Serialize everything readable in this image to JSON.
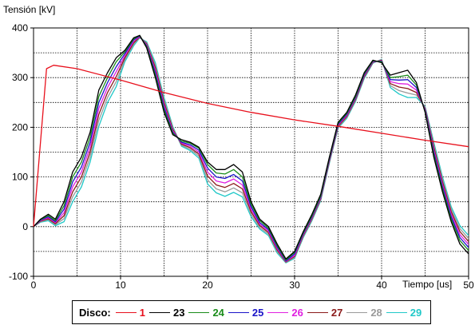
{
  "chart_data": {
    "type": "line",
    "ylabel": "Tensión [kV]",
    "xlabel": "Tiempo  [us]",
    "xlim": [
      0,
      50
    ],
    "ylim": [
      -100,
      400
    ],
    "xticks": [
      0,
      10,
      20,
      30,
      40,
      50
    ],
    "yticks": [
      -100,
      0,
      100,
      200,
      300,
      400
    ],
    "grid": true,
    "legend_title": "Disco:",
    "legend_position": "bottom",
    "series": [
      {
        "name": "1",
        "color": "#e8101c",
        "x": [
          0,
          1.5,
          2.3,
          5,
          10,
          15,
          20,
          25,
          30,
          35,
          40,
          45,
          50
        ],
        "y": [
          0,
          318,
          325,
          318,
          295,
          270,
          248,
          230,
          215,
          202,
          188,
          174,
          161
        ]
      },
      {
        "name": "23",
        "color": "#000000",
        "x": [
          0,
          0.8,
          1.7,
          2.5,
          3.5,
          4.5,
          5.5,
          6.5,
          7.5,
          8.5,
          9.5,
          10.5,
          11.5,
          12.2,
          13,
          14,
          15,
          16,
          17,
          18,
          19,
          20,
          21,
          22,
          23,
          24,
          25,
          26,
          27,
          28,
          29,
          30,
          31,
          32,
          33,
          34,
          35,
          36,
          37,
          38,
          39,
          40,
          41,
          42,
          43,
          44,
          45,
          46,
          47,
          48,
          49,
          50
        ],
        "y": [
          0,
          15,
          25,
          15,
          50,
          110,
          140,
          190,
          275,
          310,
          340,
          355,
          380,
          385,
          360,
          300,
          230,
          185,
          175,
          170,
          160,
          130,
          115,
          115,
          125,
          110,
          50,
          15,
          0,
          -35,
          -65,
          -50,
          -10,
          25,
          65,
          140,
          210,
          230,
          265,
          310,
          335,
          330,
          305,
          310,
          315,
          290,
          230,
          140,
          70,
          10,
          -35,
          -55
        ]
      },
      {
        "name": "24",
        "color": "#1a8c1a",
        "x": [
          0,
          0.8,
          1.7,
          2.5,
          3.5,
          4.5,
          5.5,
          6.5,
          7.5,
          8.5,
          9.5,
          10.5,
          11.5,
          12.2,
          13,
          14,
          15,
          16,
          17,
          18,
          19,
          20,
          21,
          22,
          23,
          24,
          25,
          26,
          27,
          28,
          29,
          30,
          31,
          32,
          33,
          34,
          35,
          36,
          37,
          38,
          39,
          40,
          41,
          42,
          43,
          44,
          45,
          46,
          47,
          48,
          49,
          50
        ],
        "y": [
          0,
          14,
          22,
          12,
          42,
          100,
          130,
          180,
          262,
          300,
          332,
          352,
          378,
          385,
          362,
          305,
          235,
          188,
          172,
          168,
          158,
          125,
          108,
          106,
          115,
          100,
          45,
          12,
          -3,
          -38,
          -67,
          -52,
          -12,
          22,
          62,
          138,
          208,
          228,
          262,
          308,
          334,
          332,
          300,
          302,
          305,
          285,
          232,
          145,
          75,
          15,
          -28,
          -48
        ]
      },
      {
        "name": "25",
        "color": "#1a14c8",
        "x": [
          0,
          0.8,
          1.7,
          2.5,
          3.5,
          4.5,
          5.5,
          6.5,
          7.5,
          8.5,
          9.5,
          10.5,
          11.5,
          12.2,
          13,
          14,
          15,
          16,
          17,
          18,
          19,
          20,
          21,
          22,
          23,
          24,
          25,
          26,
          27,
          28,
          29,
          30,
          31,
          32,
          33,
          34,
          35,
          36,
          37,
          38,
          39,
          40,
          41,
          42,
          43,
          44,
          45,
          46,
          47,
          48,
          49,
          50
        ],
        "y": [
          0,
          13,
          20,
          10,
          35,
          90,
          120,
          170,
          250,
          290,
          322,
          348,
          376,
          384,
          364,
          310,
          240,
          190,
          170,
          165,
          154,
          118,
          100,
          97,
          105,
          92,
          40,
          8,
          -6,
          -41,
          -69,
          -55,
          -14,
          20,
          60,
          136,
          206,
          226,
          260,
          306,
          333,
          333,
          296,
          295,
          296,
          280,
          234,
          150,
          80,
          20,
          -22,
          -42
        ]
      },
      {
        "name": "26",
        "color": "#e020e0",
        "x": [
          0,
          0.8,
          1.7,
          2.5,
          3.5,
          4.5,
          5.5,
          6.5,
          7.5,
          8.5,
          9.5,
          10.5,
          11.5,
          12.2,
          13,
          14,
          15,
          16,
          17,
          18,
          19,
          20,
          21,
          22,
          23,
          24,
          25,
          26,
          27,
          28,
          29,
          30,
          31,
          32,
          33,
          34,
          35,
          36,
          37,
          38,
          39,
          40,
          41,
          42,
          43,
          44,
          45,
          46,
          47,
          48,
          49,
          50
        ],
        "y": [
          0,
          12,
          18,
          8,
          28,
          80,
          110,
          160,
          238,
          280,
          312,
          344,
          373,
          383,
          366,
          315,
          245,
          193,
          168,
          162,
          150,
          110,
          92,
          88,
          96,
          84,
          35,
          5,
          -9,
          -44,
          -70,
          -58,
          -16,
          18,
          58,
          134,
          204,
          224,
          258,
          304,
          332,
          334,
          292,
          288,
          287,
          275,
          236,
          155,
          85,
          25,
          -16,
          -36
        ]
      },
      {
        "name": "27",
        "color": "#8b1a1a",
        "x": [
          0,
          0.8,
          1.7,
          2.5,
          3.5,
          4.5,
          5.5,
          6.5,
          7.5,
          8.5,
          9.5,
          10.5,
          11.5,
          12.2,
          13,
          14,
          15,
          16,
          17,
          18,
          19,
          20,
          21,
          22,
          23,
          24,
          25,
          26,
          27,
          28,
          29,
          30,
          31,
          32,
          33,
          34,
          35,
          36,
          37,
          38,
          39,
          40,
          41,
          42,
          43,
          44,
          45,
          46,
          47,
          48,
          49,
          50
        ],
        "y": [
          0,
          11,
          16,
          6,
          22,
          70,
          100,
          150,
          226,
          270,
          302,
          340,
          370,
          382,
          368,
          320,
          250,
          196,
          166,
          159,
          146,
          102,
          84,
          79,
          87,
          76,
          30,
          2,
          -12,
          -47,
          -71,
          -60,
          -18,
          16,
          56,
          132,
          202,
          222,
          256,
          302,
          331,
          335,
          288,
          281,
          278,
          270,
          238,
          160,
          90,
          30,
          -10,
          -30
        ]
      },
      {
        "name": "28",
        "color": "#9a9a9a",
        "x": [
          0,
          0.8,
          1.7,
          2.5,
          3.5,
          4.5,
          5.5,
          6.5,
          7.5,
          8.5,
          9.5,
          10.5,
          11.5,
          12.2,
          13,
          14,
          15,
          16,
          17,
          18,
          19,
          20,
          21,
          22,
          23,
          24,
          25,
          26,
          27,
          28,
          29,
          30,
          31,
          32,
          33,
          34,
          35,
          36,
          37,
          38,
          39,
          40,
          41,
          42,
          43,
          44,
          45,
          46,
          47,
          48,
          49,
          50
        ],
        "y": [
          0,
          10,
          14,
          4,
          16,
          60,
          90,
          140,
          214,
          260,
          292,
          336,
          367,
          381,
          370,
          325,
          255,
          199,
          164,
          156,
          142,
          94,
          76,
          70,
          78,
          68,
          25,
          -2,
          -15,
          -50,
          -72,
          -62,
          -20,
          14,
          54,
          130,
          200,
          220,
          254,
          300,
          330,
          336,
          284,
          274,
          269,
          265,
          240,
          165,
          95,
          35,
          -4,
          -24
        ]
      },
      {
        "name": "29",
        "color": "#20c8c8",
        "x": [
          0,
          0.8,
          1.7,
          2.5,
          3.5,
          4.5,
          5.5,
          6.5,
          7.5,
          8.5,
          9.5,
          10.5,
          11.5,
          12.2,
          13,
          14,
          15,
          16,
          17,
          18,
          19,
          20,
          21,
          22,
          23,
          24,
          25,
          26,
          27,
          28,
          29,
          30,
          31,
          32,
          33,
          34,
          35,
          36,
          37,
          38,
          39,
          40,
          41,
          42,
          43,
          44,
          45,
          46,
          47,
          48,
          49,
          50
        ],
        "y": [
          0,
          9,
          12,
          2,
          10,
          50,
          80,
          130,
          202,
          250,
          282,
          332,
          364,
          380,
          372,
          330,
          260,
          202,
          162,
          153,
          138,
          86,
          68,
          61,
          69,
          60,
          20,
          -5,
          -18,
          -53,
          -73,
          -64,
          -22,
          12,
          52,
          128,
          198,
          218,
          252,
          298,
          329,
          337,
          280,
          267,
          260,
          260,
          242,
          170,
          100,
          40,
          2,
          -18
        ]
      }
    ]
  }
}
